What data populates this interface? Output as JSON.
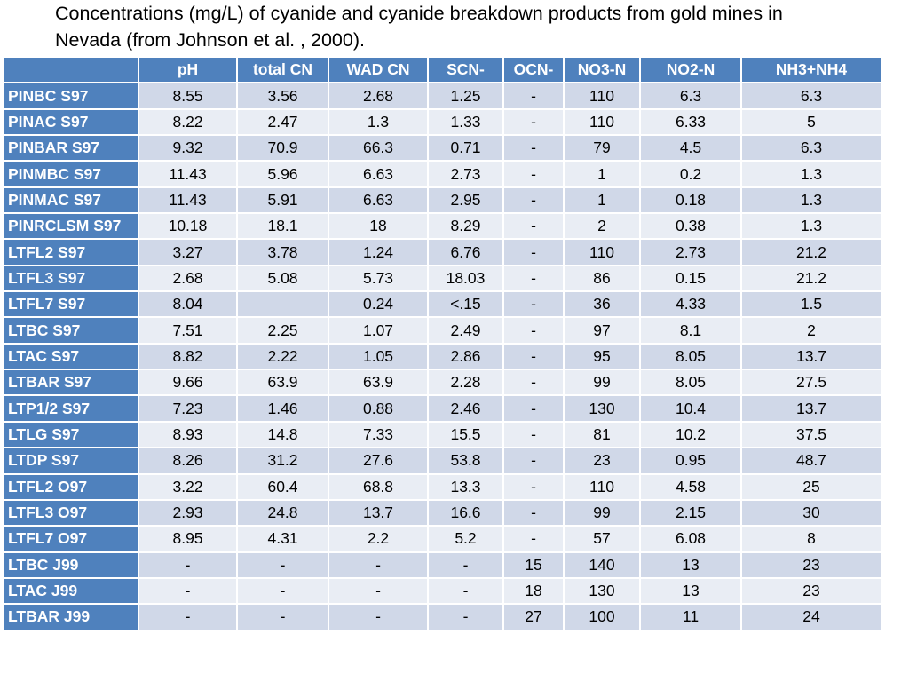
{
  "title_line1": "Concentrations (mg/L) of cyanide and cyanide breakdown products from gold mines in",
  "title_line2": "Nevada  (from Johnson et al. , 2000).",
  "table": {
    "columns": [
      "",
      "pH",
      "total CN",
      "WAD CN",
      "SCN-",
      "OCN-",
      "NO3-N",
      "NO2-N",
      "NH3+NH4"
    ],
    "rows": [
      [
        "PINBC S97",
        "8.55",
        "3.56",
        "2.68",
        "1.25",
        "-",
        "110",
        "6.3",
        "6.3"
      ],
      [
        "PINAC S97",
        "8.22",
        "2.47",
        "1.3",
        "1.33",
        "-",
        "110",
        "6.33",
        "5"
      ],
      [
        "PINBAR S97",
        "9.32",
        "70.9",
        "66.3",
        "0.71",
        "-",
        "79",
        "4.5",
        "6.3"
      ],
      [
        "PINMBC S97",
        "11.43",
        "5.96",
        "6.63",
        "2.73",
        "-",
        "1",
        "0.2",
        "1.3"
      ],
      [
        "PINMAC S97",
        "11.43",
        "5.91",
        "6.63",
        "2.95",
        "-",
        "1",
        "0.18",
        "1.3"
      ],
      [
        "PINRCLSM S97",
        "10.18",
        "18.1",
        "18",
        "8.29",
        "-",
        "2",
        "0.38",
        "1.3"
      ],
      [
        "LTFL2 S97",
        "3.27",
        "3.78",
        "1.24",
        "6.76",
        "-",
        "110",
        "2.73",
        "21.2"
      ],
      [
        "LTFL3 S97",
        "2.68",
        "5.08",
        "5.73",
        "18.03",
        "-",
        "86",
        "0.15",
        "21.2"
      ],
      [
        "LTFL7 S97",
        "8.04",
        "",
        "0.24",
        "<.15",
        "-",
        "36",
        "4.33",
        "1.5"
      ],
      [
        "LTBC S97",
        "7.51",
        "2.25",
        "1.07",
        "2.49",
        "-",
        "97",
        "8.1",
        "2"
      ],
      [
        "LTAC S97",
        "8.82",
        "2.22",
        "1.05",
        "2.86",
        "-",
        "95",
        "8.05",
        "13.7"
      ],
      [
        "LTBAR S97",
        "9.66",
        "63.9",
        "63.9",
        "2.28",
        "-",
        "99",
        "8.05",
        "27.5"
      ],
      [
        "LTP1/2 S97",
        "7.23",
        "1.46",
        "0.88",
        "2.46",
        "-",
        "130",
        "10.4",
        "13.7"
      ],
      [
        "LTLG S97",
        "8.93",
        "14.8",
        "7.33",
        "15.5",
        "-",
        "81",
        "10.2",
        "37.5"
      ],
      [
        "LTDP S97",
        "8.26",
        "31.2",
        "27.6",
        "53.8",
        "-",
        "23",
        "0.95",
        "48.7"
      ],
      [
        "LTFL2 O97",
        "3.22",
        "60.4",
        "68.8",
        "13.3",
        "-",
        "110",
        "4.58",
        "25"
      ],
      [
        "LTFL3 O97",
        "2.93",
        "24.8",
        "13.7",
        "16.6",
        "-",
        "99",
        "2.15",
        "30"
      ],
      [
        "LTFL7 O97",
        "8.95",
        "4.31",
        "2.2",
        "5.2",
        "-",
        "57",
        "6.08",
        "8"
      ],
      [
        "LTBC J99",
        "-",
        "-",
        "-",
        "-",
        "15",
        "140",
        "13",
        "23"
      ],
      [
        "LTAC J99",
        "-",
        "-",
        "-",
        "-",
        "18",
        "130",
        "13",
        "23"
      ],
      [
        "LTBAR J99",
        "-",
        "-",
        "-",
        "-",
        "27",
        "100",
        "11",
        "24"
      ]
    ]
  },
  "colors": {
    "header_bg": "#4f81bd",
    "row_odd_bg": "#d0d8e8",
    "row_even_bg": "#e9edf4"
  }
}
